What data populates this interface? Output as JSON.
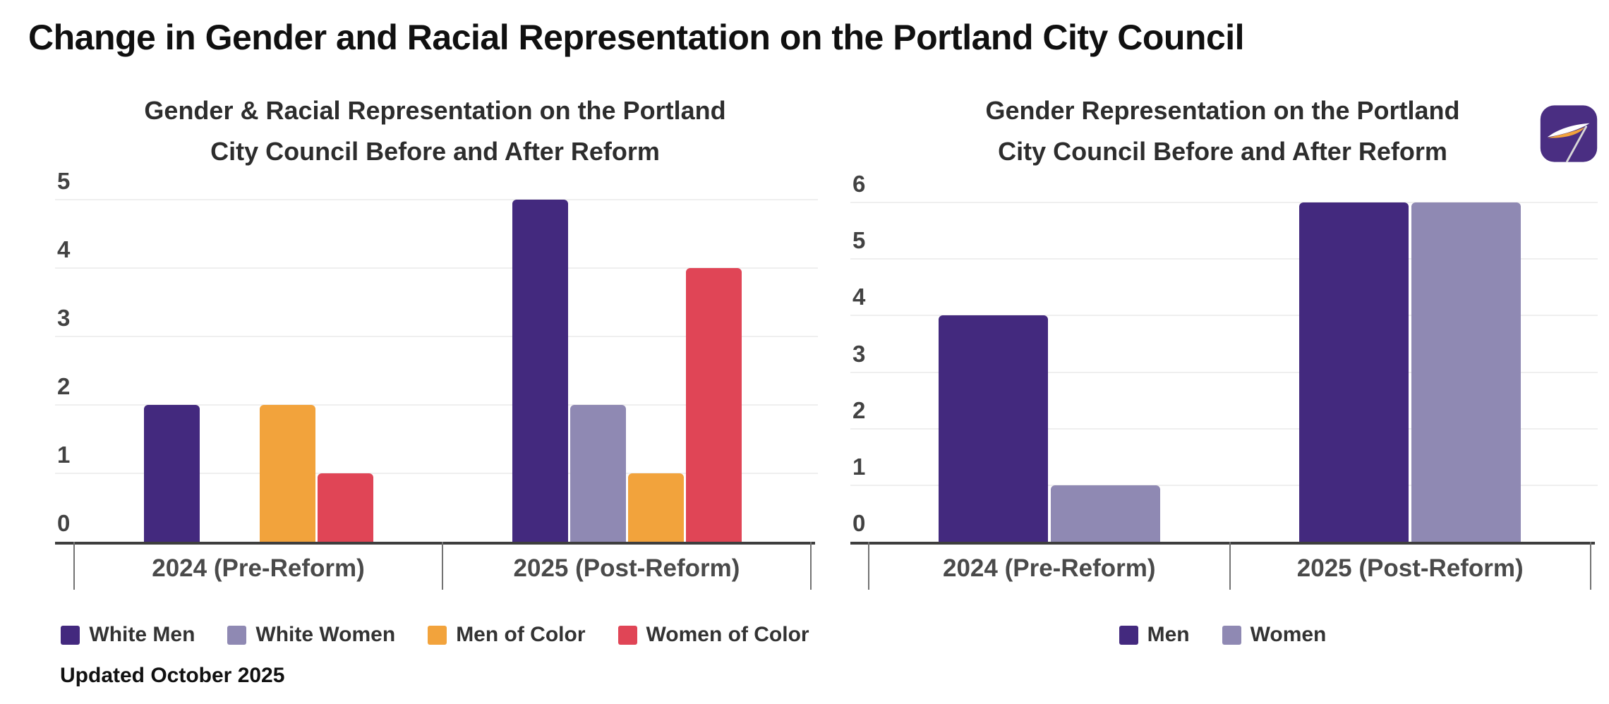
{
  "page": {
    "title": "Change in Gender and Racial Representation on the Portland City Council"
  },
  "chart_data": [
    {
      "type": "bar",
      "title": "Gender & Racial Representation on the Portland City Council Before and After Reform",
      "title_lines": [
        "Gender & Racial Representation on the Portland",
        "City Council Before and After Reform"
      ],
      "categories": [
        "2024 (Pre-Reform)",
        "2025 (Post-Reform)"
      ],
      "series": [
        {
          "name": "White Men",
          "color": "#43297E",
          "values": [
            2,
            5
          ]
        },
        {
          "name": "White Women",
          "color": "#8F89B3",
          "values": [
            0,
            2
          ]
        },
        {
          "name": "Men of Color",
          "color": "#F2A33C",
          "values": [
            2,
            1
          ]
        },
        {
          "name": "Women of Color",
          "color": "#E04556",
          "values": [
            1,
            4
          ]
        }
      ],
      "ylim": [
        0,
        5
      ],
      "yticks": [
        0,
        1,
        2,
        3,
        4,
        5
      ],
      "grid": true,
      "legend_position": "bottom"
    },
    {
      "type": "bar",
      "title": "Gender Representation on the Portland City Council Before and After Reform",
      "title_lines": [
        "Gender Representation on the Portland",
        "City Council Before and After Reform"
      ],
      "categories": [
        "2024 (Pre-Reform)",
        "2025 (Post-Reform)"
      ],
      "series": [
        {
          "name": "Men",
          "color": "#43297E",
          "values": [
            4,
            6
          ]
        },
        {
          "name": "Women",
          "color": "#8F89B3",
          "values": [
            1,
            6
          ]
        }
      ],
      "ylim": [
        0,
        6
      ],
      "yticks": [
        0,
        1,
        2,
        3,
        4,
        5,
        6
      ],
      "grid": true,
      "legend_position": "bottom"
    }
  ],
  "footer": {
    "note": "Updated October 2025"
  },
  "logo": {
    "background": "#4A2E82",
    "swoosh_top": "#FFFFFF",
    "swoosh_bottom": "#F2A33C",
    "pole": "#D8D8D8"
  }
}
